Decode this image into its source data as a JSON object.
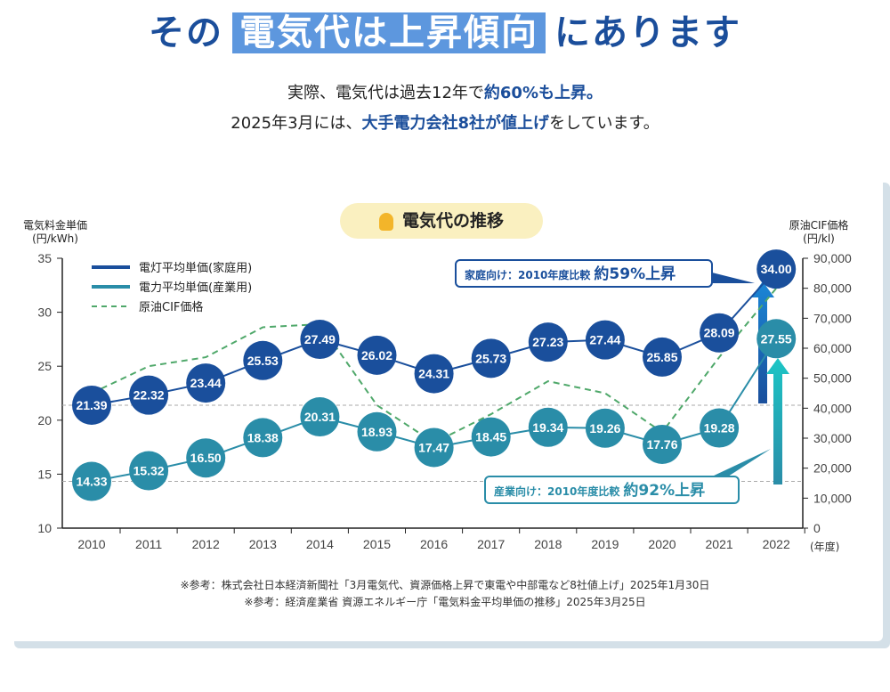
{
  "header": {
    "title_pre": "その",
    "title_highlight": "電気代は上昇傾向",
    "title_post": "にあります",
    "line1_pre": "実際、電気代は過去12年で",
    "line1_bold": "約60%も上昇。",
    "line2_pre": "2025年3月には、",
    "line2_bold": "大手電力会社8社が値上げ",
    "line2_post": "をしています。"
  },
  "chart_title": "電気代の推移",
  "chart_data": {
    "type": "line",
    "x": [
      "2010",
      "2011",
      "2012",
      "2013",
      "2014",
      "2015",
      "2016",
      "2017",
      "2018",
      "2019",
      "2020",
      "2021",
      "2022"
    ],
    "xlabel_unit": "(年度)",
    "ylabel_left": [
      "電気料金単価",
      "(円/kWh)"
    ],
    "ylim_left": [
      10,
      35
    ],
    "yticks_left": [
      "10",
      "15",
      "20",
      "25",
      "30",
      "35"
    ],
    "ylabel_right": [
      "原油CIF価格",
      "(円/kl)"
    ],
    "ylim_right": [
      0,
      90000
    ],
    "yticks_right": [
      "0",
      "10,000",
      "20,000",
      "30,000",
      "40,000",
      "50,000",
      "60,000",
      "70,000",
      "80,000",
      "90,000"
    ],
    "series": [
      {
        "name": "電灯平均単価(家庭用)",
        "axis": "left",
        "color": "#1a4f9c",
        "values": [
          21.39,
          22.32,
          23.44,
          25.53,
          27.49,
          26.02,
          24.31,
          25.73,
          27.23,
          27.44,
          25.85,
          28.09,
          34.0
        ],
        "labels": [
          "21.39",
          "22.32",
          "23.44",
          "25.53",
          "27.49",
          "26.02",
          "24.31",
          "25.73",
          "27.23",
          "27.44",
          "25.85",
          "28.09",
          "34.00"
        ]
      },
      {
        "name": "電力平均単価(産業用)",
        "axis": "left",
        "color": "#2a8da8",
        "values": [
          14.33,
          15.32,
          16.5,
          18.38,
          20.31,
          18.93,
          17.47,
          18.45,
          19.34,
          19.26,
          17.76,
          19.28,
          27.55
        ],
        "labels": [
          "14.33",
          "15.32",
          "16.50",
          "18.38",
          "20.31",
          "18.93",
          "17.47",
          "18.45",
          "19.34",
          "19.26",
          "17.76",
          "19.28",
          "27.55"
        ]
      },
      {
        "name": "原油CIF価格",
        "axis": "right",
        "color": "#4fa86a",
        "dashed": true,
        "values": [
          45000,
          54000,
          57000,
          67000,
          68000,
          41000,
          28500,
          38000,
          49000,
          45000,
          32000,
          57000,
          80000
        ]
      }
    ],
    "annotations": [
      {
        "pre": "家庭向け：2010年度比較",
        "big": "約59%上昇",
        "color": "#1a4f9c"
      },
      {
        "pre": "産業向け：2010年度比較",
        "big": "約92%上昇",
        "color": "#2a8da8"
      }
    ]
  },
  "references": [
    "※参考：株式会社日本経済新聞社「3月電気代、資源価格上昇で東電や中部電など8社値上げ」2025年1月30日",
    "※参考：経済産業省 資源エネルギー庁「電気料金平均単価の推移」2025年3月25日"
  ]
}
